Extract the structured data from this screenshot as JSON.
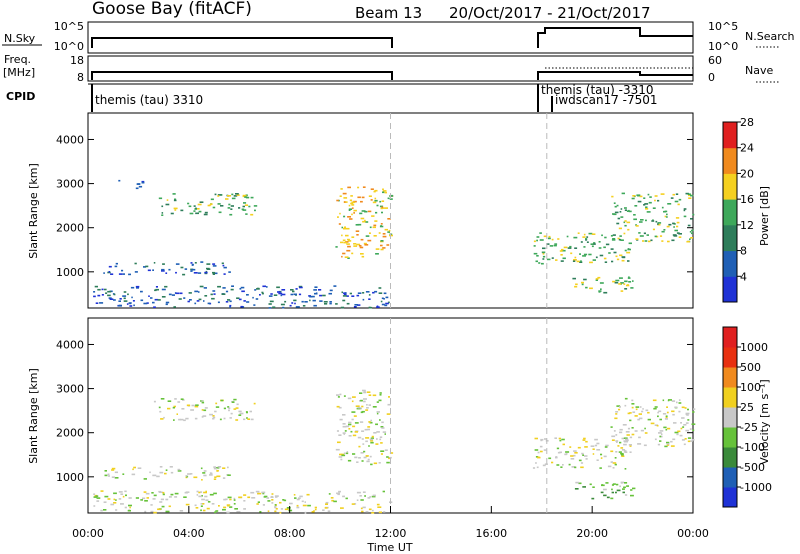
{
  "header": {
    "station": "Goose Bay (fitACF)",
    "beam": "Beam 13",
    "date_range": "20/Oct/2017 - 21/Oct/2017"
  },
  "status_panels": {
    "nsky_label": "N.Sky",
    "nsky_ticks": [
      "10^5",
      "10^0"
    ],
    "nsearch_label": "N.Search",
    "nsearch_ticks": [
      "10^5",
      "10^0"
    ],
    "freq_label_1": "Freq.",
    "freq_label_2": "[MHz]",
    "freq_ticks": [
      "18",
      "8"
    ],
    "nave_label": "Nave",
    "nave_ticks": [
      "60",
      "0"
    ],
    "cpid_label": "CPID",
    "cpid_entries": [
      "themis (tau) 3310",
      "themis (tau) -3310",
      "iwdscan17 -7501"
    ]
  },
  "time_axis": {
    "label": "Time UT",
    "ticks": [
      "00:00",
      "04:00",
      "08:00",
      "12:00",
      "16:00",
      "20:00",
      "00:00"
    ],
    "hours": [
      0,
      4,
      8,
      12,
      16,
      20,
      24
    ],
    "range_hours": [
      0,
      24
    ],
    "marked_gaps_hours": [
      12.0,
      18.2
    ]
  },
  "chart_data": [
    {
      "type": "heatmap",
      "panel": "power",
      "ylabel": "Slant Range [km]",
      "yticks": [
        1000,
        2000,
        3000,
        4000
      ],
      "ylim": [
        180,
        4600
      ],
      "xlim": [
        0,
        24
      ],
      "colorbar_label": "Power [dB]",
      "colorbar_ticks": [
        "4",
        "8",
        "12",
        "16",
        "20",
        "24",
        "28"
      ],
      "colors": [
        "#1f32d6",
        "#1f5fb5",
        "#2e7d5a",
        "#3ea85a",
        "#f5d020",
        "#f08a1e",
        "#e02020"
      ],
      "echo_regions": [
        {
          "t": [
            1.2,
            2.2
          ],
          "r": [
            2900,
            3100
          ],
          "level": 1
        },
        {
          "t": [
            2.6,
            6.6
          ],
          "r": [
            2300,
            2800
          ],
          "level": 3
        },
        {
          "t": [
            0.6,
            5.6
          ],
          "r": [
            950,
            1250
          ],
          "level": 1
        },
        {
          "t": [
            0.2,
            12.0
          ],
          "r": [
            200,
            700
          ],
          "level": 1
        },
        {
          "t": [
            9.8,
            12.0
          ],
          "r": [
            1300,
            3000
          ],
          "level": 4
        },
        {
          "t": [
            17.6,
            21.5
          ],
          "r": [
            1200,
            1900
          ],
          "level": 3
        },
        {
          "t": [
            19.2,
            21.6
          ],
          "r": [
            500,
            900
          ],
          "level": 3
        },
        {
          "t": [
            20.7,
            24.0
          ],
          "r": [
            1700,
            2800
          ],
          "level": 3
        }
      ]
    },
    {
      "type": "heatmap",
      "panel": "velocity",
      "ylabel": "Slant Range [km]",
      "yticks": [
        1000,
        2000,
        3000,
        4000
      ],
      "ylim": [
        180,
        4600
      ],
      "xlim": [
        0,
        24
      ],
      "colorbar_label": "Velocity [m s⁻¹]",
      "colorbar_ticks": [
        "1000",
        "500",
        "100",
        "25",
        "-25",
        "-100",
        "-500",
        "-1000"
      ],
      "colors": [
        "#1f32d6",
        "#1f5fb5",
        "#3a8a3a",
        "#66c23a",
        "#c8c8c8",
        "#f0d020",
        "#f08a1e",
        "#e83010",
        "#e02020"
      ],
      "echo_regions": [
        {
          "t": [
            2.6,
            6.6
          ],
          "r": [
            2300,
            2800
          ],
          "level": 4
        },
        {
          "t": [
            0.6,
            5.6
          ],
          "r": [
            950,
            1250
          ],
          "level": 4
        },
        {
          "t": [
            0.2,
            12.0
          ],
          "r": [
            200,
            700
          ],
          "level": 4
        },
        {
          "t": [
            9.8,
            12.0
          ],
          "r": [
            1300,
            3000
          ],
          "level": 4
        },
        {
          "t": [
            17.6,
            21.5
          ],
          "r": [
            1200,
            1900
          ],
          "level": 4
        },
        {
          "t": [
            19.2,
            21.6
          ],
          "r": [
            500,
            900
          ],
          "level": 3
        },
        {
          "t": [
            20.7,
            24.0
          ],
          "r": [
            1700,
            2800
          ],
          "level": 4
        }
      ]
    }
  ]
}
